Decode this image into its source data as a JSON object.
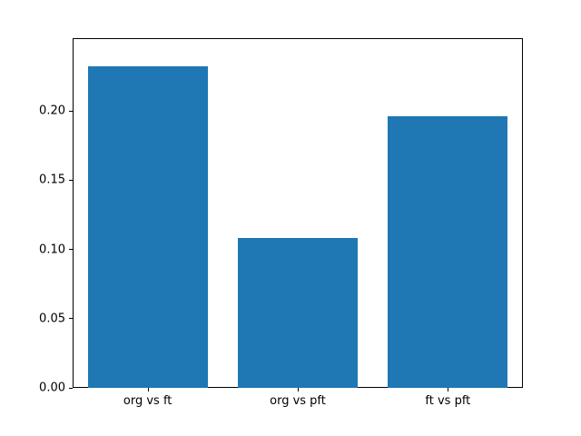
{
  "chart_data": {
    "type": "bar",
    "title": "",
    "xlabel": "",
    "ylabel": "",
    "categories": [
      "org vs ft",
      "org vs pft",
      "ft vs pft"
    ],
    "values": [
      0.232,
      0.108,
      0.196
    ],
    "yticks": [
      0.0,
      0.05,
      0.1,
      0.15,
      0.2
    ],
    "ytick_labels": [
      "0.00",
      "0.05",
      "0.10",
      "0.15",
      "0.20"
    ],
    "ylim": [
      0,
      0.2525
    ],
    "bar_width_fraction": 0.8,
    "bar_color": "#1f77b4",
    "axis_color": "#000000",
    "background_color": "#ffffff",
    "grid": false,
    "legend": null
  }
}
